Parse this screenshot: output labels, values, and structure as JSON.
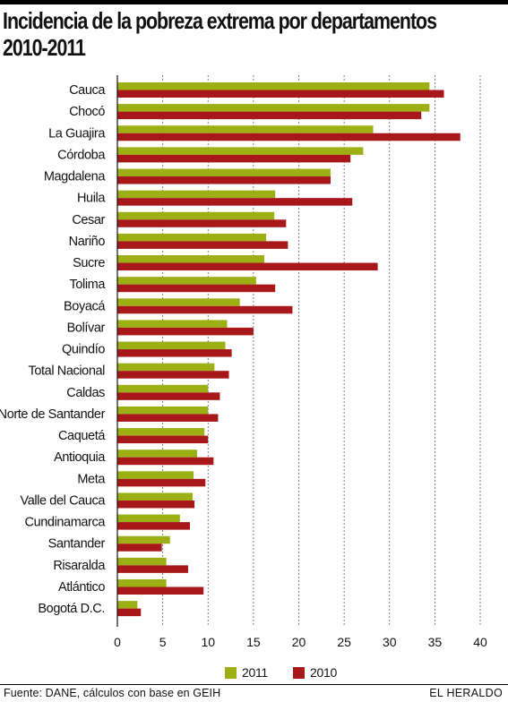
{
  "chart_data": {
    "type": "bar",
    "orientation": "horizontal",
    "title": "Incidencia de la pobreza extrema por departamentos 2010-2011",
    "categories": [
      "Cauca",
      "Chocó",
      "La Guajira",
      "Córdoba",
      "Magdalena",
      "Huila",
      "Cesar",
      "Nariño",
      "Sucre",
      "Tolima",
      "Boyacá",
      "Bolívar",
      "Quindío",
      "Total Nacional",
      "Caldas",
      "Norte de Santander",
      "Caquetá",
      "Antioquia",
      "Meta",
      "Valle del Cauca",
      "Cundinamarca",
      "Santander",
      "Risaralda",
      "Atlántico",
      "Bogotá D.C."
    ],
    "series": [
      {
        "name": "2011",
        "color": "#9caf14",
        "values": [
          34.4,
          34.4,
          28.2,
          27.1,
          23.5,
          17.4,
          17.3,
          16.4,
          16.2,
          15.3,
          13.5,
          12.1,
          11.9,
          10.7,
          10.0,
          10.0,
          9.6,
          8.8,
          8.4,
          8.3,
          6.9,
          5.8,
          5.4,
          5.4,
          2.2
        ],
        "value_labels": false
      },
      {
        "name": "2010",
        "color": "#a8171a",
        "values": [
          36.0,
          33.5,
          37.8,
          25.7,
          23.5,
          25.9,
          18.6,
          18.8,
          28.7,
          17.4,
          19.3,
          15.0,
          12.6,
          12.3,
          11.3,
          11.1,
          10.0,
          10.6,
          9.7,
          8.5,
          8.0,
          4.9,
          7.8,
          9.5,
          2.6
        ],
        "value_labels": false
      }
    ],
    "x_ticks": [
      "0",
      "5",
      "10",
      "15",
      "20",
      "25",
      "30",
      "35",
      "40"
    ],
    "xlim": [
      0,
      40
    ],
    "grid": "vertical-dashed",
    "legend_position": "bottom"
  },
  "title_line1": "Incidencia de la pobreza extrema por departamentos",
  "title_line2": "2010-2011",
  "legend": {
    "label_2011": "2011",
    "label_2010": "2010"
  },
  "footer": {
    "source": "Fuente: DANE, cálculos con base en GEIH",
    "publisher": "EL HERALDO"
  }
}
